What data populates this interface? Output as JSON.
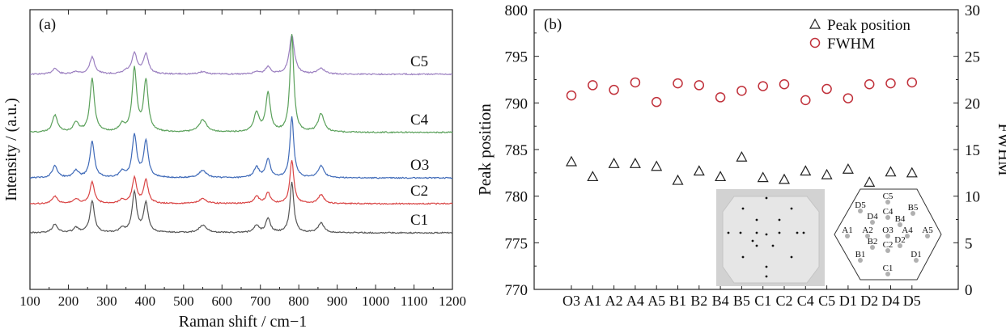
{
  "chart_data": [
    {
      "type": "line",
      "panel_label": "(a)",
      "xlabel": "Raman shift / cm−1",
      "ylabel": "Intensity / (a.u.)",
      "xlim": [
        100,
        1200
      ],
      "xticks": [
        "100",
        "200",
        "300",
        "400",
        "500",
        "600",
        "700",
        "800",
        "900",
        "1000",
        "1100",
        "1200"
      ],
      "xtick_values": [
        100,
        200,
        300,
        400,
        500,
        600,
        700,
        800,
        900,
        1000,
        1100,
        1200
      ],
      "series": [
        {
          "name": "C5",
          "color": "#9b7fc0",
          "baseline": 0.28,
          "peaks": [
            [
              165,
              0.12,
              8
            ],
            [
              220,
              0.05,
              8
            ],
            [
              262,
              0.35,
              8
            ],
            [
              350,
              0.05,
              8
            ],
            [
              372,
              0.42,
              8
            ],
            [
              402,
              0.4,
              8
            ],
            [
              550,
              0.05,
              12
            ],
            [
              690,
              0.05,
              8
            ],
            [
              720,
              0.15,
              8
            ],
            [
              782,
              0.8,
              8
            ],
            [
              858,
              0.12,
              10
            ]
          ]
        },
        {
          "name": "C4",
          "color": "#5aa05a",
          "baseline": 1.48,
          "peaks": [
            [
              165,
              0.35,
              8
            ],
            [
              220,
              0.2,
              8
            ],
            [
              262,
              1.1,
              7
            ],
            [
              340,
              0.15,
              8
            ],
            [
              372,
              1.3,
              7
            ],
            [
              402,
              1.05,
              7
            ],
            [
              550,
              0.25,
              12
            ],
            [
              690,
              0.4,
              8
            ],
            [
              720,
              0.8,
              7
            ],
            [
              782,
              2.0,
              6
            ],
            [
              858,
              0.38,
              9
            ]
          ]
        },
        {
          "name": "O3",
          "color": "#3f6ab8",
          "baseline": 2.42,
          "peaks": [
            [
              165,
              0.25,
              8
            ],
            [
              220,
              0.15,
              8
            ],
            [
              262,
              0.75,
              7
            ],
            [
              340,
              0.12,
              8
            ],
            [
              372,
              0.88,
              7
            ],
            [
              402,
              0.75,
              7
            ],
            [
              550,
              0.15,
              12
            ],
            [
              690,
              0.22,
              8
            ],
            [
              720,
              0.38,
              7
            ],
            [
              782,
              1.25,
              6
            ],
            [
              858,
              0.25,
              9
            ]
          ]
        },
        {
          "name": "C2",
          "color": "#d94444",
          "baseline": 2.95,
          "peaks": [
            [
              165,
              0.15,
              8
            ],
            [
              220,
              0.1,
              8
            ],
            [
              262,
              0.45,
              7
            ],
            [
              340,
              0.08,
              8
            ],
            [
              372,
              0.52,
              7
            ],
            [
              402,
              0.48,
              7
            ],
            [
              550,
              0.1,
              12
            ],
            [
              690,
              0.15,
              8
            ],
            [
              720,
              0.22,
              7
            ],
            [
              782,
              0.9,
              6
            ],
            [
              858,
              0.18,
              9
            ]
          ]
        },
        {
          "name": "C1",
          "color": "#555555",
          "baseline": 3.55,
          "peaks": [
            [
              165,
              0.18,
              8
            ],
            [
              220,
              0.1,
              8
            ],
            [
              262,
              0.65,
              7
            ],
            [
              340,
              0.08,
              8
            ],
            [
              372,
              0.82,
              7
            ],
            [
              402,
              0.6,
              7
            ],
            [
              550,
              0.15,
              12
            ],
            [
              690,
              0.15,
              8
            ],
            [
              720,
              0.3,
              7
            ],
            [
              782,
              1.05,
              6
            ],
            [
              858,
              0.2,
              9
            ]
          ]
        }
      ]
    },
    {
      "type": "scatter",
      "panel_label": "(b)",
      "ylabel": "Peak position",
      "ylabel_right": "FWHM",
      "ylim": [
        770,
        800
      ],
      "yticks": [
        "770",
        "775",
        "780",
        "785",
        "790",
        "795",
        "800"
      ],
      "ylim_right": [
        0,
        30
      ],
      "yticks_right": [
        "0",
        "5",
        "10",
        "15",
        "20",
        "25",
        "30"
      ],
      "categories": [
        "O3",
        "A1",
        "A2",
        "A4",
        "A5",
        "B1",
        "B2",
        "B4",
        "B5",
        "C1",
        "C2",
        "C4",
        "C5",
        "D1",
        "D2",
        "D4",
        "D5"
      ],
      "series": [
        {
          "name": "Peak position",
          "marker": "triangle",
          "color": "#222222",
          "axis": "left",
          "values": [
            783.7,
            782.1,
            783.5,
            783.5,
            783.2,
            781.7,
            782.7,
            782.1,
            784.2,
            782.0,
            781.8,
            782.7,
            782.3,
            782.9,
            781.5,
            782.6,
            782.5
          ]
        },
        {
          "name": "FWHM",
          "marker": "circle",
          "color": "#c0303a",
          "axis": "right",
          "values": [
            20.8,
            21.9,
            21.4,
            22.2,
            20.1,
            22.1,
            21.9,
            20.6,
            21.3,
            21.8,
            22.0,
            20.3,
            21.5,
            20.5,
            22.0,
            22.1,
            22.2
          ]
        }
      ],
      "legend": "top-right",
      "inset_map": {
        "labels": [
          "C5",
          "D5",
          "B5",
          "D4",
          "C4",
          "B4",
          "A1",
          "A2",
          "O3",
          "A4",
          "A5",
          "B2",
          "C2",
          "D2",
          "B1",
          "D1",
          "C1"
        ]
      }
    }
  ]
}
